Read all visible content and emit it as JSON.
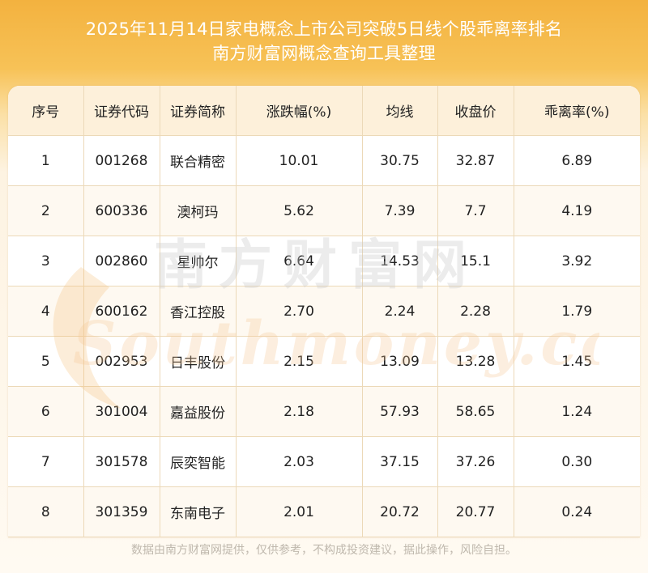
{
  "header": {
    "title_line1": "2025年11月14日家电概念上市公司突破5日线个股乖离率排名",
    "title_line2": "南方财富网概念查询工具整理"
  },
  "table": {
    "columns": [
      "序号",
      "证券代码",
      "证券简称",
      "涨跌幅(%)",
      "均线",
      "收盘价",
      "乖离率(%)"
    ],
    "rows": [
      [
        "1",
        "001268",
        "联合精密",
        "10.01",
        "30.75",
        "32.87",
        "6.89"
      ],
      [
        "2",
        "600336",
        "澳柯玛",
        "5.62",
        "7.39",
        "7.7",
        "4.19"
      ],
      [
        "3",
        "002860",
        "星帅尔",
        "6.64",
        "14.53",
        "15.1",
        "3.92"
      ],
      [
        "4",
        "600162",
        "香江控股",
        "2.70",
        "2.24",
        "2.28",
        "1.79"
      ],
      [
        "5",
        "002953",
        "日丰股份",
        "2.15",
        "13.09",
        "13.28",
        "1.45"
      ],
      [
        "6",
        "301004",
        "嘉益股份",
        "2.18",
        "57.93",
        "58.65",
        "1.24"
      ],
      [
        "7",
        "301578",
        "辰奕智能",
        "2.03",
        "37.15",
        "37.26",
        "0.30"
      ],
      [
        "8",
        "301359",
        "东南电子",
        "2.01",
        "20.72",
        "20.77",
        "0.24"
      ]
    ]
  },
  "watermark": {
    "brand_cn": "南方财富网",
    "brand_en": "Southmoney.com"
  },
  "footer": {
    "disclaimer": "数据由南方财富网提供，仅供参考，不构成投资建议，据此操作，风险自担。"
  }
}
